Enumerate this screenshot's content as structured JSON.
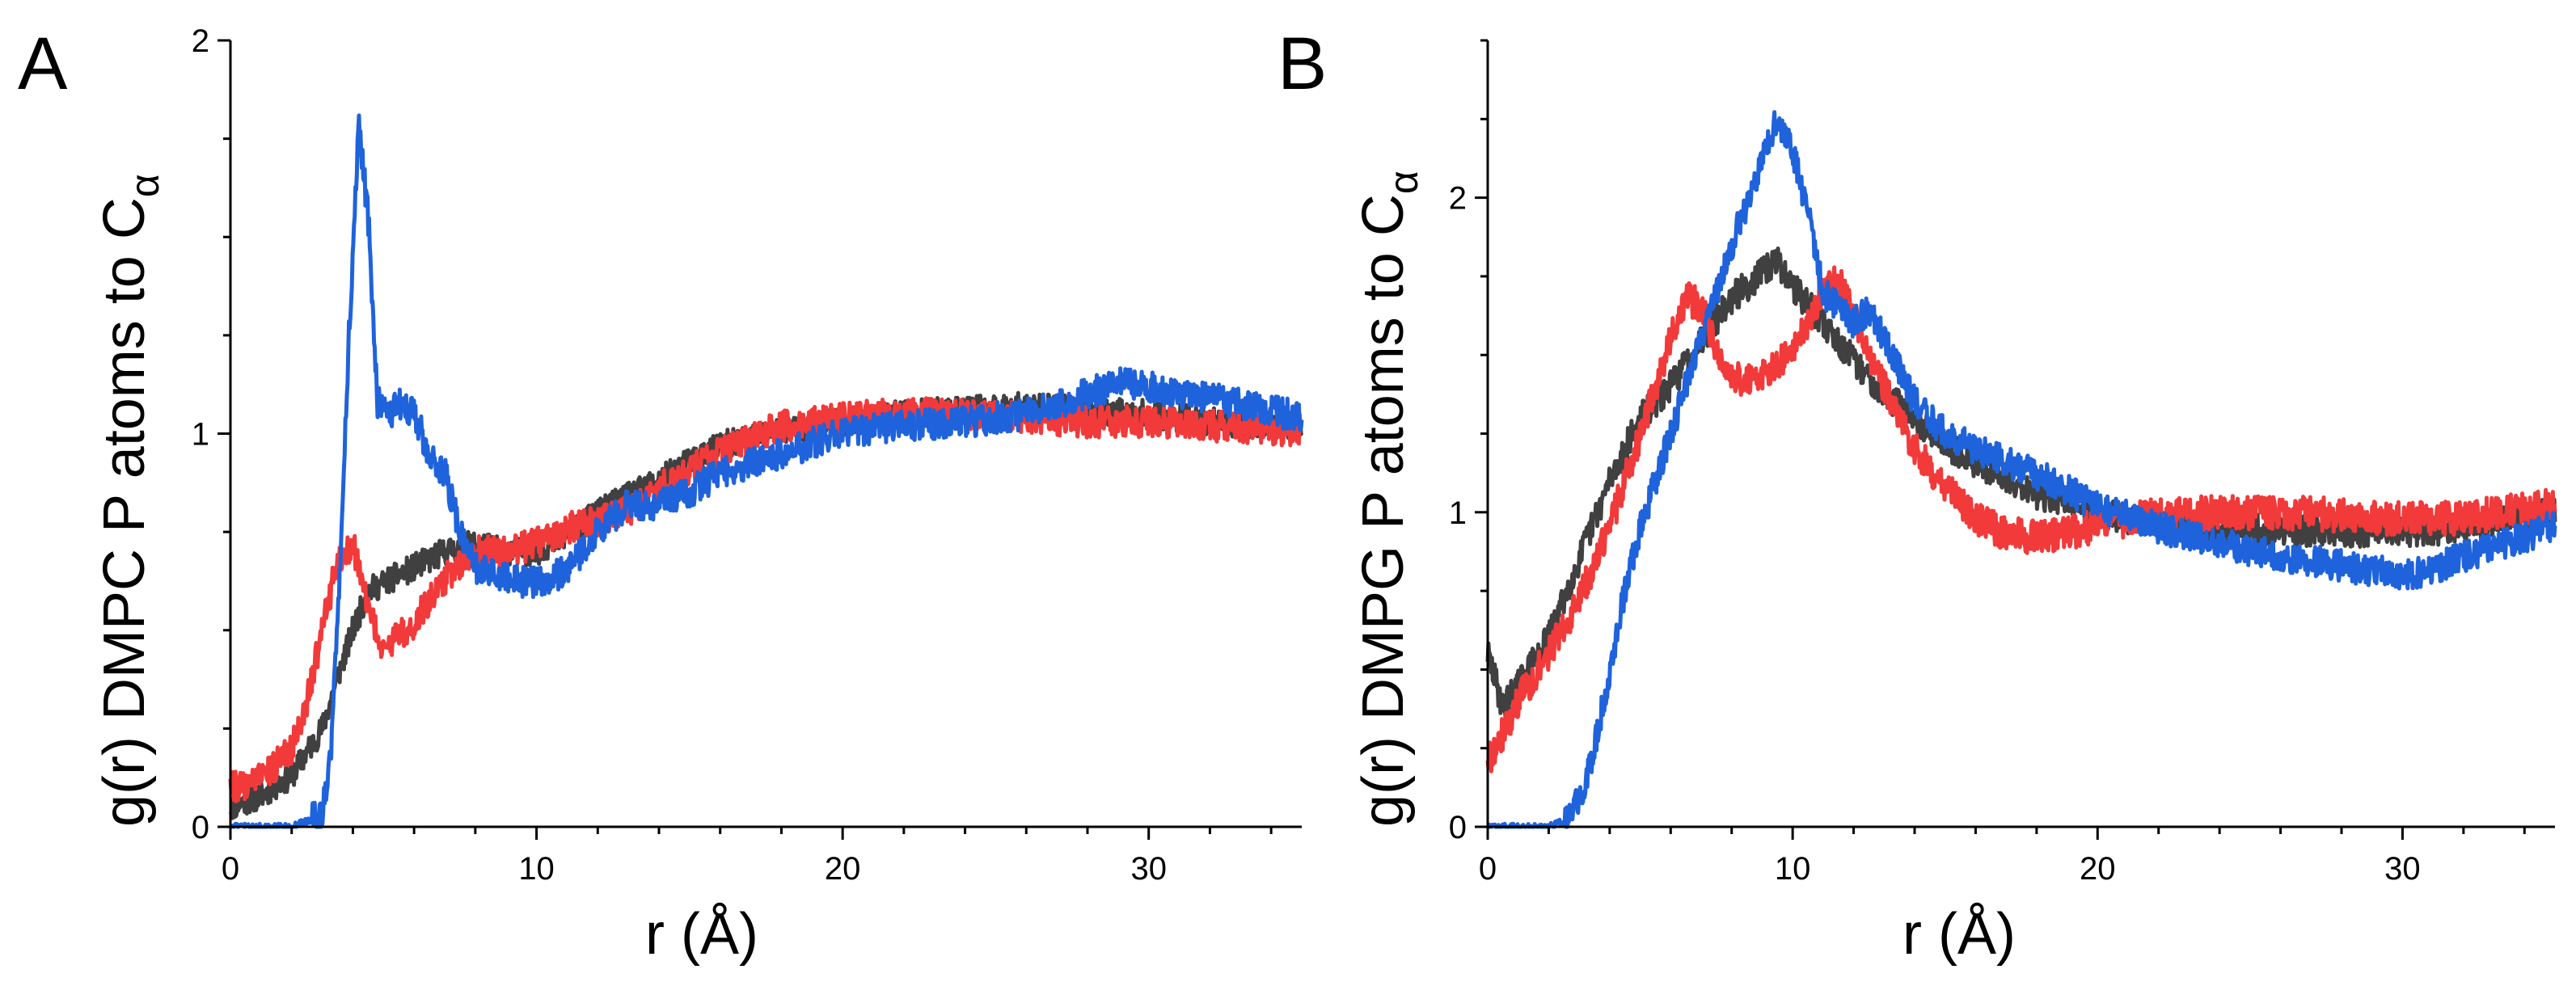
{
  "figure": {
    "colors": {
      "black": "#404040",
      "red": "#f23a3a",
      "blue": "#1f63dc",
      "axis": "#000000"
    }
  },
  "chart_data": [
    {
      "type": "line",
      "panel_label": "A",
      "title": "",
      "xlabel": "r  (Å)",
      "ylabel": {
        "main": "g(r) DMPC P atoms to C",
        "subscript": "α"
      },
      "xlim": [
        0,
        35
      ],
      "ylim": [
        0,
        2
      ],
      "xticks": [
        0,
        10,
        20,
        30
      ],
      "yticks": [
        0,
        1,
        2
      ],
      "grid": false,
      "series": [
        {
          "name": "black",
          "color": "#404040",
          "noise": 0.035,
          "x": [
            0,
            1,
            2,
            3,
            3.5,
            4,
            4.5,
            5,
            6,
            7,
            8,
            9,
            10,
            11,
            12,
            13,
            14,
            15,
            16,
            18,
            20,
            22,
            24,
            26,
            28,
            30,
            32,
            34,
            35
          ],
          "y": [
            0.05,
            0.08,
            0.13,
            0.25,
            0.38,
            0.5,
            0.6,
            0.62,
            0.66,
            0.7,
            0.72,
            0.7,
            0.7,
            0.74,
            0.8,
            0.84,
            0.88,
            0.93,
            0.97,
            1.01,
            1.03,
            1.05,
            1.06,
            1.07,
            1.06,
            1.05,
            1.03,
            1.02,
            1.02
          ]
        },
        {
          "name": "red",
          "color": "#f23a3a",
          "noise": 0.04,
          "x": [
            0,
            1,
            2,
            2.5,
            3,
            3.5,
            4,
            4.5,
            5,
            6,
            7,
            8,
            9,
            10,
            11,
            12,
            13,
            14,
            16,
            18,
            20,
            22,
            24,
            26,
            28,
            30,
            32,
            34,
            35
          ],
          "y": [
            0.1,
            0.12,
            0.2,
            0.32,
            0.5,
            0.68,
            0.72,
            0.55,
            0.45,
            0.52,
            0.63,
            0.7,
            0.7,
            0.72,
            0.76,
            0.78,
            0.8,
            0.86,
            0.95,
            1.02,
            1.04,
            1.05,
            1.05,
            1.04,
            1.03,
            1.03,
            1.02,
            1.01,
            1.01
          ]
        },
        {
          "name": "blue",
          "color": "#1f63dc",
          "noise": 0.04,
          "x": [
            0,
            2,
            3,
            3.3,
            3.6,
            3.9,
            4.2,
            4.5,
            4.8,
            5.2,
            5.6,
            6,
            6.5,
            7,
            7.5,
            8,
            9,
            10,
            11,
            12,
            13,
            14,
            15,
            16,
            18,
            20,
            22,
            24,
            26,
            28,
            29,
            30,
            32,
            34,
            35
          ],
          "y": [
            0,
            0,
            0.03,
            0.2,
            0.7,
            1.3,
            1.78,
            1.55,
            1.08,
            1.05,
            1.08,
            1.05,
            0.95,
            0.9,
            0.75,
            0.66,
            0.63,
            0.62,
            0.65,
            0.75,
            0.82,
            0.82,
            0.85,
            0.9,
            0.95,
            1.0,
            1.02,
            1.03,
            1.05,
            1.1,
            1.13,
            1.12,
            1.09,
            1.06,
            1.04
          ]
        }
      ]
    },
    {
      "type": "line",
      "panel_label": "B",
      "title": "",
      "xlabel": "r  (Å)",
      "ylabel": {
        "main": "g(r) DMPG P atoms to C",
        "subscript": "α"
      },
      "xlim": [
        0,
        35
      ],
      "ylim": [
        0,
        2.5
      ],
      "xticks": [
        0,
        10,
        20,
        30
      ],
      "yticks": [
        0,
        1,
        2
      ],
      "grid": false,
      "series": [
        {
          "name": "black",
          "color": "#404040",
          "noise": 0.05,
          "x": [
            0,
            0.5,
            1,
            2,
            3,
            4,
            5,
            6,
            7,
            8,
            9,
            9.5,
            10,
            11,
            12,
            13,
            14,
            15,
            16,
            18,
            20,
            22,
            24,
            26,
            28,
            30,
            32,
            34,
            35
          ],
          "y": [
            0.55,
            0.38,
            0.45,
            0.6,
            0.85,
            1.1,
            1.3,
            1.4,
            1.55,
            1.68,
            1.76,
            1.8,
            1.72,
            1.6,
            1.48,
            1.38,
            1.3,
            1.22,
            1.16,
            1.06,
            1.0,
            0.96,
            0.95,
            0.94,
            0.94,
            0.94,
            0.95,
            0.98,
            1.0
          ]
        },
        {
          "name": "red",
          "color": "#f23a3a",
          "noise": 0.055,
          "x": [
            0,
            0.5,
            1,
            2,
            3,
            4,
            5,
            6,
            6.5,
            7,
            7.5,
            8,
            9,
            10,
            11,
            11.5,
            12,
            13,
            14,
            15,
            16,
            17,
            18,
            19,
            20,
            22,
            24,
            26,
            28,
            30,
            32,
            34,
            35
          ],
          "y": [
            0.2,
            0.3,
            0.4,
            0.55,
            0.72,
            0.95,
            1.25,
            1.55,
            1.68,
            1.66,
            1.52,
            1.42,
            1.44,
            1.5,
            1.7,
            1.74,
            1.62,
            1.4,
            1.2,
            1.08,
            0.98,
            0.93,
            0.92,
            0.93,
            0.96,
            0.99,
            1.0,
            1.0,
            0.99,
            0.98,
            0.98,
            1.01,
            1.02
          ]
        },
        {
          "name": "blue",
          "color": "#1f63dc",
          "noise": 0.05,
          "x": [
            0,
            2,
            2.5,
            3,
            3.5,
            4,
            4.5,
            5,
            5.5,
            6,
            7,
            8,
            9,
            9.5,
            10,
            10.5,
            11,
            12,
            12.5,
            13,
            14,
            15,
            16,
            18,
            20,
            22,
            24,
            26,
            28,
            30,
            31,
            32,
            34,
            35
          ],
          "y": [
            0,
            0,
            0.02,
            0.08,
            0.25,
            0.5,
            0.75,
            0.95,
            1.1,
            1.25,
            1.55,
            1.85,
            2.12,
            2.25,
            2.15,
            1.95,
            1.7,
            1.6,
            1.65,
            1.55,
            1.35,
            1.25,
            1.2,
            1.12,
            1.02,
            0.95,
            0.9,
            0.86,
            0.83,
            0.8,
            0.82,
            0.86,
            0.92,
            0.96
          ]
        }
      ]
    }
  ]
}
